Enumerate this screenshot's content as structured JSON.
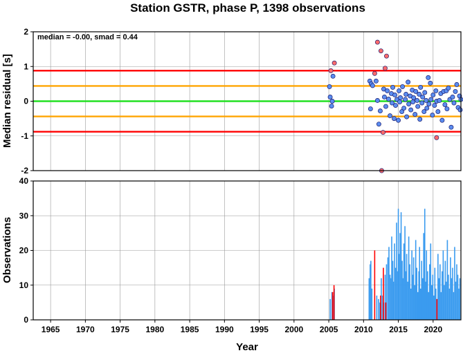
{
  "chart_data": [
    {
      "type": "scatter",
      "title": "Station GSTR, phase P, 1398 observations",
      "xlabel": "",
      "ylabel": "Median residual [s]",
      "xlim": [
        1962.5,
        2024
      ],
      "ylim": [
        -2,
        2
      ],
      "x_ticks": [
        "1965",
        "1970",
        "1975",
        "1980",
        "1985",
        "1990",
        "1995",
        "2000",
        "2005",
        "2010",
        "2015",
        "2020"
      ],
      "y_ticks": [
        "2",
        "1",
        "0",
        "-1",
        "-2"
      ],
      "annotation": "median = -0.00, smad = 0.44",
      "reference_lines": [
        {
          "y": 0.0,
          "color": "#22e022"
        },
        {
          "y": 0.44,
          "color": "#ffa500"
        },
        {
          "y": -0.44,
          "color": "#ffa500"
        },
        {
          "y": 0.88,
          "color": "#ff0000"
        },
        {
          "y": -0.88,
          "color": "#ff0000"
        }
      ],
      "colors": {
        "inlier": "#5b8def",
        "outlier": "#ff6b6b",
        "edge": "#1a1a6e"
      },
      "series": [
        {
          "values": [
            [
              2005.1,
              0.42
            ],
            [
              2005.2,
              0.12
            ],
            [
              2005.4,
              -0.14
            ],
            [
              2005.5,
              0.0
            ],
            [
              2005.6,
              0.72
            ],
            [
              2010.9,
              0.58
            ],
            [
              2011.0,
              -0.22
            ],
            [
              2011.1,
              0.5
            ],
            [
              2011.3,
              0.45
            ],
            [
              2011.8,
              0.58
            ],
            [
              2012.0,
              0.02
            ],
            [
              2012.2,
              -0.66
            ],
            [
              2012.4,
              -0.28
            ],
            [
              2012.9,
              0.35
            ],
            [
              2013.0,
              0.12
            ],
            [
              2013.2,
              -0.15
            ],
            [
              2013.4,
              0.3
            ],
            [
              2013.6,
              0.06
            ],
            [
              2013.8,
              -0.42
            ],
            [
              2014.0,
              0.22
            ],
            [
              2014.1,
              -0.05
            ],
            [
              2014.2,
              0.4
            ],
            [
              2014.4,
              -0.5
            ],
            [
              2014.5,
              0.18
            ],
            [
              2014.6,
              -0.12
            ],
            [
              2014.8,
              0.05
            ],
            [
              2015.0,
              -0.55
            ],
            [
              2015.1,
              0.3
            ],
            [
              2015.2,
              -0.02
            ],
            [
              2015.3,
              0.1
            ],
            [
              2015.5,
              -0.3
            ],
            [
              2015.6,
              0.42
            ],
            [
              2015.8,
              -0.2
            ],
            [
              2016.0,
              0.05
            ],
            [
              2016.1,
              0.2
            ],
            [
              2016.2,
              -0.45
            ],
            [
              2016.4,
              0.55
            ],
            [
              2016.5,
              -0.08
            ],
            [
              2016.7,
              0.15
            ],
            [
              2016.8,
              -0.25
            ],
            [
              2017.0,
              0.32
            ],
            [
              2017.1,
              -0.02
            ],
            [
              2017.2,
              0.1
            ],
            [
              2017.4,
              -0.38
            ],
            [
              2017.5,
              0.28
            ],
            [
              2017.7,
              0.02
            ],
            [
              2017.8,
              -0.15
            ],
            [
              2018.0,
              0.2
            ],
            [
              2018.1,
              -0.52
            ],
            [
              2018.2,
              0.4
            ],
            [
              2018.4,
              -0.05
            ],
            [
              2018.5,
              0.12
            ],
            [
              2018.7,
              -0.3
            ],
            [
              2018.8,
              0.25
            ],
            [
              2019.0,
              0.02
            ],
            [
              2019.1,
              -0.2
            ],
            [
              2019.3,
              0.68
            ],
            [
              2019.4,
              -0.08
            ],
            [
              2019.6,
              0.52
            ],
            [
              2019.7,
              0.05
            ],
            [
              2019.9,
              -0.4
            ],
            [
              2020.0,
              0.18
            ],
            [
              2020.2,
              -0.12
            ],
            [
              2020.4,
              0.3
            ],
            [
              2020.5,
              0.0
            ],
            [
              2020.7,
              -0.3
            ],
            [
              2020.9,
              0.02
            ],
            [
              2021.1,
              0.22
            ],
            [
              2021.3,
              -0.55
            ],
            [
              2021.5,
              0.28
            ],
            [
              2021.7,
              -0.1
            ],
            [
              2021.9,
              0.3
            ],
            [
              2022.0,
              -0.22
            ],
            [
              2022.2,
              0.38
            ],
            [
              2022.4,
              0.05
            ],
            [
              2022.6,
              -0.75
            ],
            [
              2022.8,
              0.12
            ],
            [
              2023.0,
              -0.05
            ],
            [
              2023.2,
              0.28
            ],
            [
              2023.4,
              0.48
            ],
            [
              2023.6,
              -0.18
            ],
            [
              2023.8,
              0.15
            ],
            [
              2023.9,
              -0.25
            ],
            [
              2024.0,
              0.05
            ]
          ]
        },
        {
          "values": [
            [
              2005.3,
              0.88
            ],
            [
              2005.8,
              1.1
            ],
            [
              2011.6,
              0.8
            ],
            [
              2012.0,
              1.7
            ],
            [
              2012.5,
              1.45
            ],
            [
              2012.8,
              -0.9
            ],
            [
              2012.6,
              -2.0
            ],
            [
              2013.3,
              1.3
            ],
            [
              2013.1,
              0.95
            ],
            [
              2020.5,
              -1.05
            ]
          ]
        }
      ]
    },
    {
      "type": "bar",
      "title": "",
      "xlabel": "Year",
      "ylabel": "Observations",
      "xlim": [
        1962.5,
        2024
      ],
      "ylim": [
        0,
        40
      ],
      "x_ticks": [
        "1965",
        "1970",
        "1975",
        "1980",
        "1985",
        "1990",
        "1995",
        "2000",
        "2005",
        "2010",
        "2015",
        "2020"
      ],
      "y_ticks": [
        "40",
        "30",
        "20",
        "10",
        "0"
      ],
      "colors": {
        "main": "#3a9bef",
        "accent": "#ff0000"
      },
      "series": [
        {
          "values": [
            [
              2005.2,
              6
            ],
            [
              2005.45,
              8
            ],
            [
              2005.6,
              7
            ],
            [
              2005.8,
              9
            ],
            [
              2010.8,
              12
            ],
            [
              2010.95,
              16
            ],
            [
              2011.05,
              17
            ],
            [
              2011.2,
              9
            ],
            [
              2011.9,
              7
            ],
            [
              2012.15,
              6
            ],
            [
              2012.35,
              5
            ],
            [
              2012.55,
              12
            ],
            [
              2012.75,
              7
            ],
            [
              2012.9,
              5
            ],
            [
              2013.1,
              13
            ],
            [
              2013.3,
              16
            ],
            [
              2013.5,
              18
            ],
            [
              2013.65,
              21
            ],
            [
              2013.8,
              13
            ],
            [
              2013.95,
              12
            ],
            [
              2014.05,
              24
            ],
            [
              2014.2,
              17
            ],
            [
              2014.3,
              11
            ],
            [
              2014.45,
              22
            ],
            [
              2014.6,
              15
            ],
            [
              2014.75,
              28
            ],
            [
              2014.85,
              14
            ],
            [
              2015.0,
              32
            ],
            [
              2015.1,
              19
            ],
            [
              2015.25,
              25
            ],
            [
              2015.4,
              31
            ],
            [
              2015.55,
              17
            ],
            [
              2015.65,
              12
            ],
            [
              2015.8,
              22
            ],
            [
              2015.95,
              27
            ],
            [
              2016.05,
              14
            ],
            [
              2016.2,
              19
            ],
            [
              2016.35,
              11
            ],
            [
              2016.5,
              24
            ],
            [
              2016.65,
              16
            ],
            [
              2016.8,
              9
            ],
            [
              2016.95,
              20
            ],
            [
              2017.05,
              13
            ],
            [
              2017.2,
              18
            ],
            [
              2017.35,
              10
            ],
            [
              2017.5,
              23
            ],
            [
              2017.65,
              15
            ],
            [
              2017.8,
              8
            ],
            [
              2017.95,
              14
            ],
            [
              2018.05,
              21
            ],
            [
              2018.2,
              9
            ],
            [
              2018.35,
              17
            ],
            [
              2018.5,
              12
            ],
            [
              2018.65,
              25
            ],
            [
              2018.8,
              32
            ],
            [
              2018.95,
              11
            ],
            [
              2019.05,
              20
            ],
            [
              2019.2,
              14
            ],
            [
              2019.35,
              8
            ],
            [
              2019.5,
              16
            ],
            [
              2019.65,
              22
            ],
            [
              2019.8,
              10
            ],
            [
              2019.95,
              13
            ],
            [
              2020.1,
              7
            ],
            [
              2020.25,
              15
            ],
            [
              2020.4,
              9
            ],
            [
              2020.7,
              19
            ],
            [
              2020.85,
              12
            ],
            [
              2021.0,
              16
            ],
            [
              2021.15,
              8
            ],
            [
              2021.3,
              14
            ],
            [
              2021.45,
              20
            ],
            [
              2021.6,
              10
            ],
            [
              2021.75,
              17
            ],
            [
              2021.9,
              11
            ],
            [
              2022.05,
              23
            ],
            [
              2022.2,
              13
            ],
            [
              2022.35,
              9
            ],
            [
              2022.5,
              18
            ],
            [
              2022.65,
              12
            ],
            [
              2022.8,
              15
            ],
            [
              2022.95,
              8
            ],
            [
              2023.1,
              21
            ],
            [
              2023.25,
              11
            ],
            [
              2023.4,
              16
            ],
            [
              2023.55,
              13
            ],
            [
              2023.7,
              9
            ],
            [
              2023.85,
              12
            ]
          ]
        },
        {
          "values": [
            [
              2005.55,
              8
            ],
            [
              2005.75,
              10
            ],
            [
              2011.6,
              20
            ],
            [
              2012.45,
              7
            ],
            [
              2012.85,
              15
            ],
            [
              2013.2,
              5
            ],
            [
              2020.55,
              6
            ]
          ]
        }
      ]
    }
  ]
}
